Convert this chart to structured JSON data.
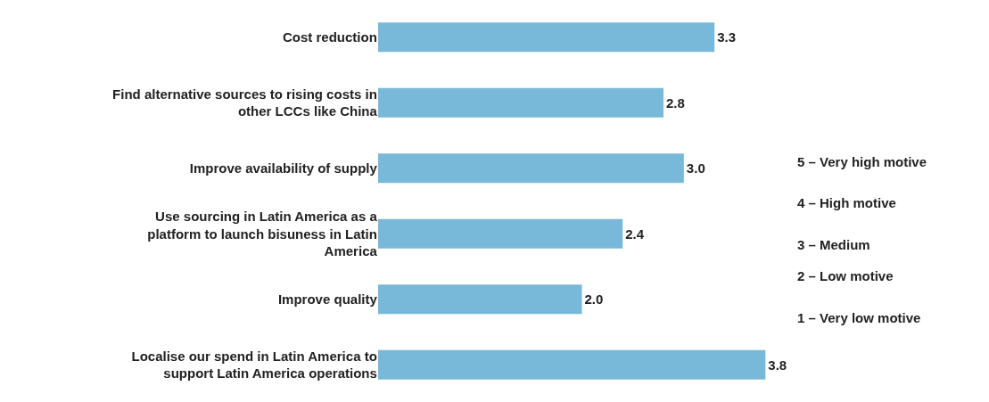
{
  "chart_data": {
    "type": "bar",
    "orientation": "horizontal",
    "categories": [
      "Cost reduction",
      "Find alternative sources to rising costs in other LCCs like China",
      "Improve availability of supply",
      "Use sourcing in Latin America as a platform to launch bisuness in Latin America",
      "Improve quality",
      "Localise our spend in Latin America to support Latin America operations"
    ],
    "values": [
      3.3,
      2.8,
      3.0,
      2.4,
      2.0,
      3.8
    ],
    "color": "#78b8d9",
    "value_labels": [
      "3.3",
      "2.8",
      "3.0",
      "2.4",
      "2.0",
      "3.8"
    ],
    "annotations": [
      "5 – Very high motive",
      "4 – High motive",
      "3 – Medium",
      "2 – Low motive",
      "1 – Very low motive"
    ]
  }
}
